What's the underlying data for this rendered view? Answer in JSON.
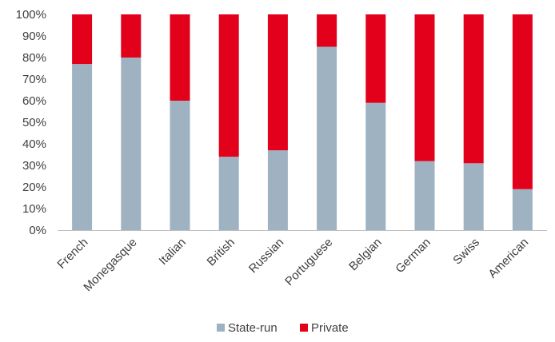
{
  "chart_data": {
    "type": "bar",
    "stacked": true,
    "title": "",
    "xlabel": "",
    "ylabel": "",
    "categories": [
      "French",
      "Monegasque",
      "Italian",
      "British",
      "Russian",
      "Portuguese",
      "Belgian",
      "German",
      "Swiss",
      "American"
    ],
    "series": [
      {
        "name": "State-run",
        "color": "#9eb2c2",
        "values": [
          77,
          80,
          60,
          34,
          37,
          85,
          59,
          32,
          31,
          19
        ]
      },
      {
        "name": "Private",
        "color": "#e2001a",
        "values": [
          23,
          20,
          40,
          66,
          63,
          15,
          41,
          68,
          69,
          81
        ]
      }
    ],
    "ylim": [
      0,
      100
    ],
    "yticks": [
      0,
      10,
      20,
      30,
      40,
      50,
      60,
      70,
      80,
      90,
      100
    ],
    "ytick_labels": [
      "0%",
      "10%",
      "20%",
      "30%",
      "40%",
      "50%",
      "60%",
      "70%",
      "80%",
      "90%",
      "100%"
    ],
    "grid": false,
    "legend_position": "bottom"
  }
}
